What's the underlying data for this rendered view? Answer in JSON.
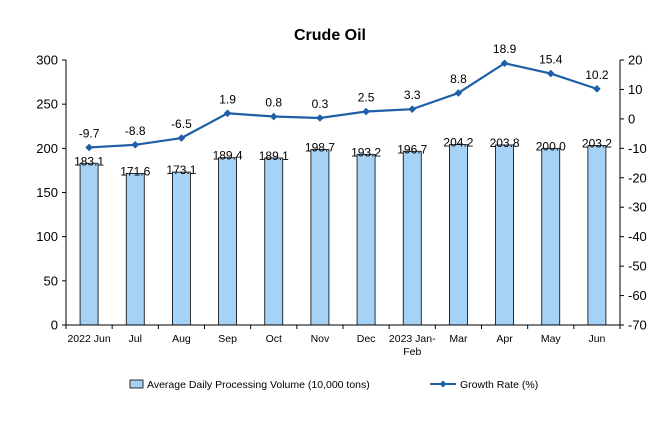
{
  "chart_data": {
    "type": "bar",
    "title": "Crude Oil",
    "categories": [
      "2022 Jun",
      "Jul",
      "Aug",
      "Sep",
      "Oct",
      "Nov",
      "Dec",
      "2023 Jan-Feb",
      "Mar",
      "Apr",
      "May",
      "Jun"
    ],
    "series": [
      {
        "name": "Average Daily Processing Volume (10,000 tons)",
        "type": "bar",
        "axis": "left",
        "color": "#a6d2f6",
        "values": [
          183.1,
          171.6,
          173.1,
          189.4,
          189.1,
          198.7,
          193.2,
          196.7,
          204.2,
          203.8,
          200.0,
          203.2
        ],
        "labels": [
          "183.1",
          "171.6",
          "173.1",
          "189.4",
          "189.1",
          "198.7",
          "193.2",
          "196.7",
          "204.2",
          "203.8",
          "200.0",
          "203.2"
        ]
      },
      {
        "name": "Growth Rate (%)",
        "type": "line",
        "axis": "right",
        "color": "#1f5fa8",
        "values": [
          -9.7,
          -8.8,
          -6.5,
          1.9,
          0.8,
          0.3,
          2.5,
          3.3,
          8.8,
          18.9,
          15.4,
          10.2
        ],
        "labels": [
          "-9.7",
          "-8.8",
          "-6.5",
          "1.9",
          "0.8",
          "0.3",
          "2.5",
          "3.3",
          "8.8",
          "18.9",
          "15.4",
          "10.2"
        ]
      }
    ],
    "y_left": {
      "range": [
        0,
        300
      ],
      "ticks": [
        "0",
        "50",
        "100",
        "150",
        "200",
        "250",
        "300"
      ]
    },
    "y_right": {
      "range": [
        -70,
        20
      ],
      "ticks": [
        "-70",
        "-60",
        "-50",
        "-40",
        "-30",
        "-20",
        "-10",
        "0",
        "10",
        "20"
      ]
    },
    "grid": false,
    "legend": "bottom"
  }
}
